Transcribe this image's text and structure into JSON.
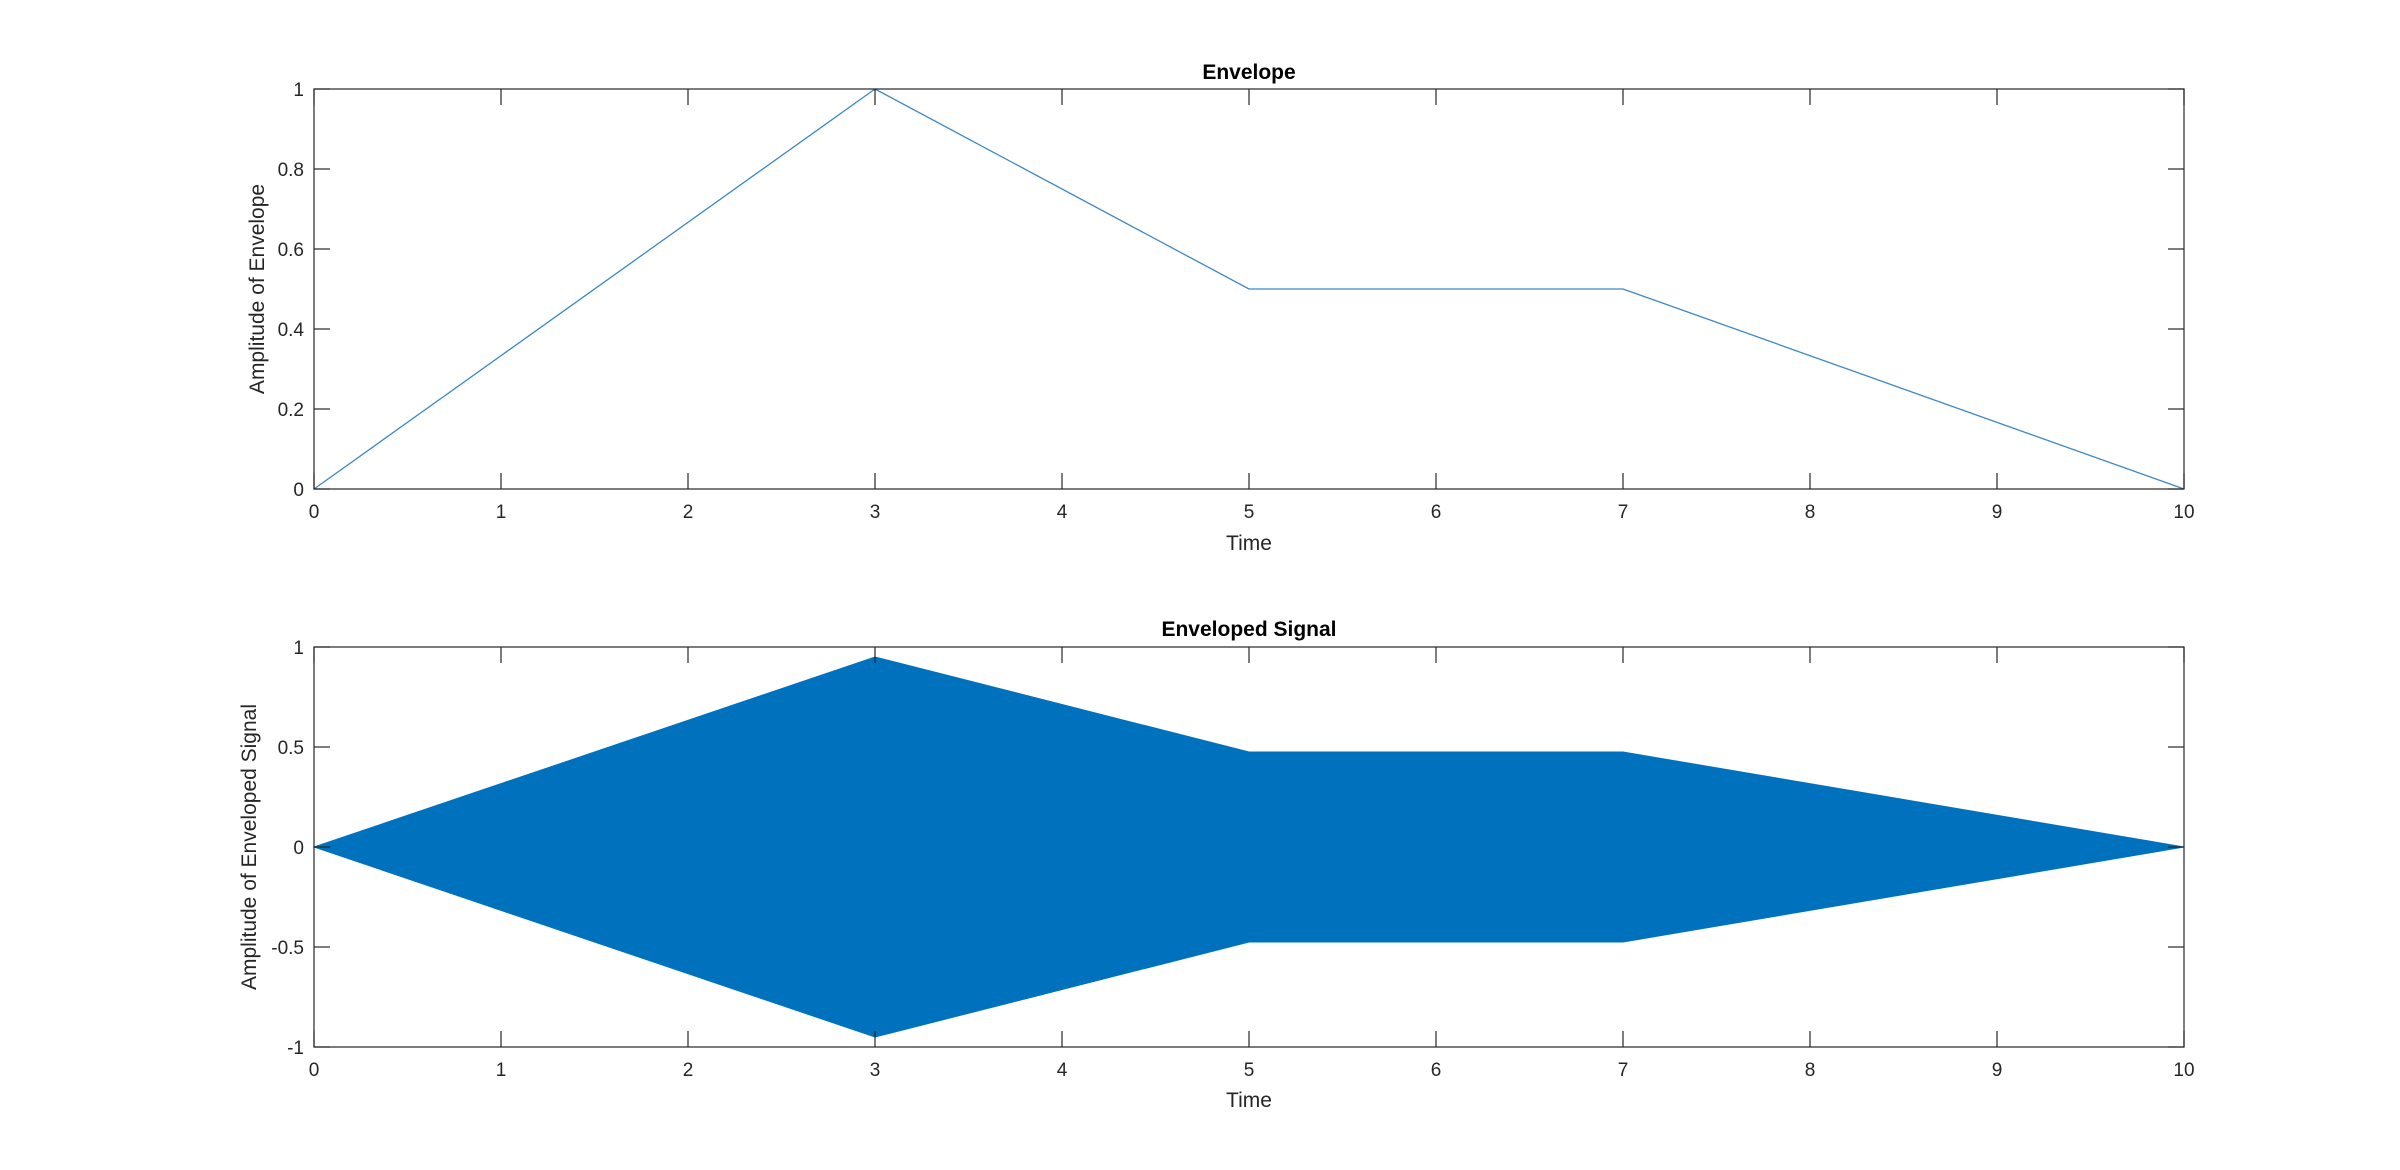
{
  "chart_data": [
    {
      "type": "line",
      "title": "Envelope",
      "xlabel": "Time",
      "ylabel": "Amplitude of Envelope",
      "xlim": [
        0,
        10
      ],
      "ylim": [
        0,
        1
      ],
      "x_ticks": [
        "0",
        "1",
        "2",
        "3",
        "4",
        "5",
        "6",
        "7",
        "8",
        "9",
        "10"
      ],
      "y_ticks": [
        "0",
        "0.2",
        "0.4",
        "0.6",
        "0.8",
        "1"
      ],
      "grid": false,
      "color": "#3d87c6",
      "series": [
        {
          "x": [
            0,
            3,
            5,
            7,
            10
          ],
          "y": [
            0,
            1,
            0.5,
            0.5,
            0
          ]
        }
      ]
    },
    {
      "type": "area",
      "title": "Enveloped Signal",
      "xlabel": "Time",
      "ylabel": "Amplitude of Enveloped Signal",
      "xlim": [
        0,
        10
      ],
      "ylim": [
        -1,
        1
      ],
      "x_ticks": [
        "0",
        "1",
        "2",
        "3",
        "4",
        "5",
        "6",
        "7",
        "8",
        "9",
        "10"
      ],
      "y_ticks": [
        "-1",
        "-0.5",
        "0",
        "0.5",
        "1"
      ],
      "grid": false,
      "color": "#0072bd",
      "series": [
        {
          "x": [
            0,
            3,
            5,
            7,
            10
          ],
          "upper": [
            0,
            0.95,
            0.475,
            0.475,
            0
          ],
          "lower": [
            0,
            -0.95,
            -0.475,
            -0.475,
            0
          ]
        }
      ]
    }
  ]
}
